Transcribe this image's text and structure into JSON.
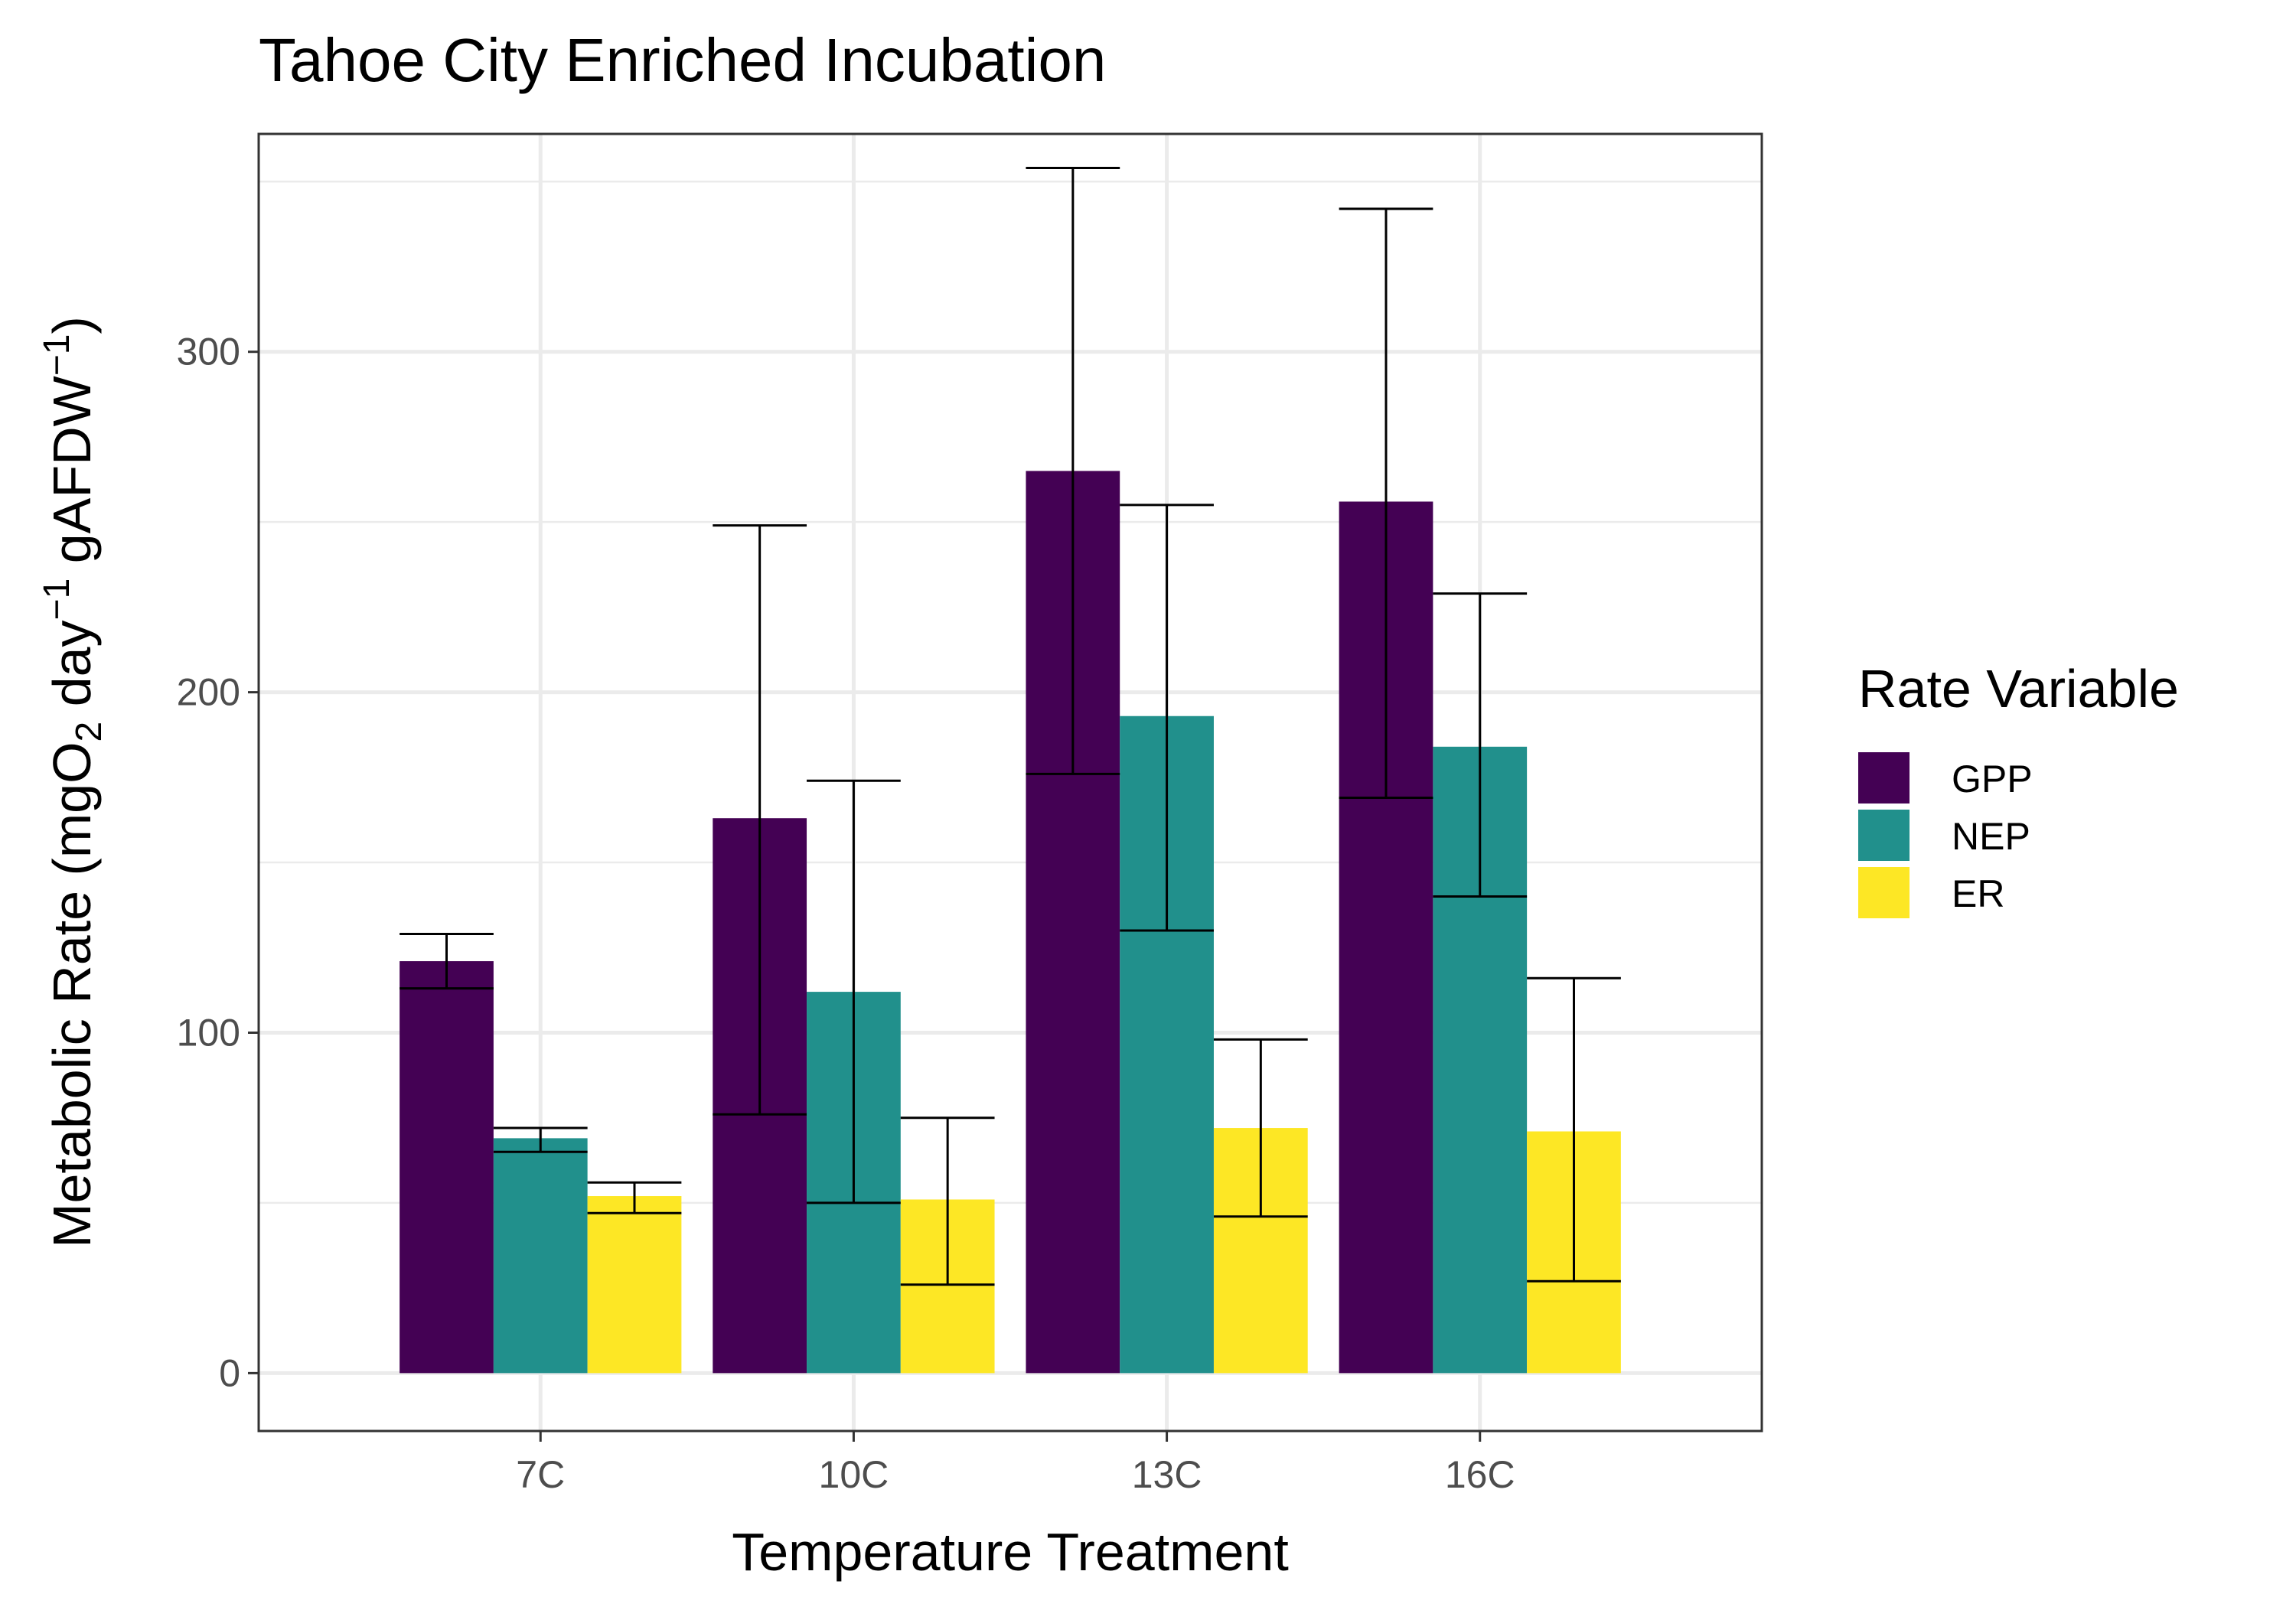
{
  "chart_data": {
    "type": "bar",
    "title": "Tahoe City Enriched Incubation",
    "xlabel": "Temperature Treatment",
    "ylabel": "Metabolic Rate (mgO₂ day⁻¹ gAFDW⁻¹)",
    "ylabel_parts": {
      "lead": "Metabolic Rate (mgO",
      "sub": "2",
      "mid1": " day",
      "sup1": "−1",
      "mid2": " gAFDW",
      "sup2": "−1",
      "tail": ")"
    },
    "categories": [
      "7C",
      "10C",
      "13C",
      "16C"
    ],
    "ylim": [
      -17,
      364
    ],
    "yticks": [
      0,
      100,
      200,
      300
    ],
    "ytick_labels": [
      "0",
      "100",
      "200",
      "300"
    ],
    "grid": true,
    "legend": {
      "title": "Rate Variable",
      "position": "right"
    },
    "series": [
      {
        "name": "GPP",
        "color": "#440154",
        "values": [
          121,
          163,
          265,
          256
        ],
        "err_low": [
          113,
          76,
          176,
          169
        ],
        "err_high": [
          129,
          249,
          354,
          342
        ]
      },
      {
        "name": "NEP",
        "color": "#21908C",
        "values": [
          69,
          112,
          193,
          184
        ],
        "err_low": [
          65,
          50,
          130,
          140
        ],
        "err_high": [
          72,
          174,
          255,
          229
        ]
      },
      {
        "name": "ER",
        "color": "#FDE725",
        "values": [
          52,
          51,
          72,
          71
        ],
        "err_low": [
          47,
          26,
          46,
          27
        ],
        "err_high": [
          56,
          75,
          98,
          116
        ]
      }
    ]
  }
}
